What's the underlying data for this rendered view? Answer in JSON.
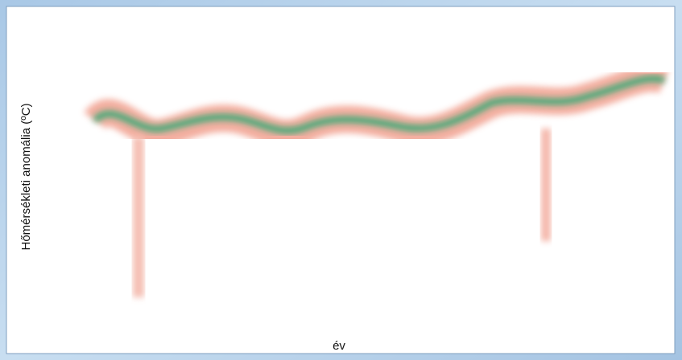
{
  "chart_data": {
    "type": "line",
    "x_label": "év",
    "y_label": "Hőmérsékleti anomália (ºC)"
  }
}
